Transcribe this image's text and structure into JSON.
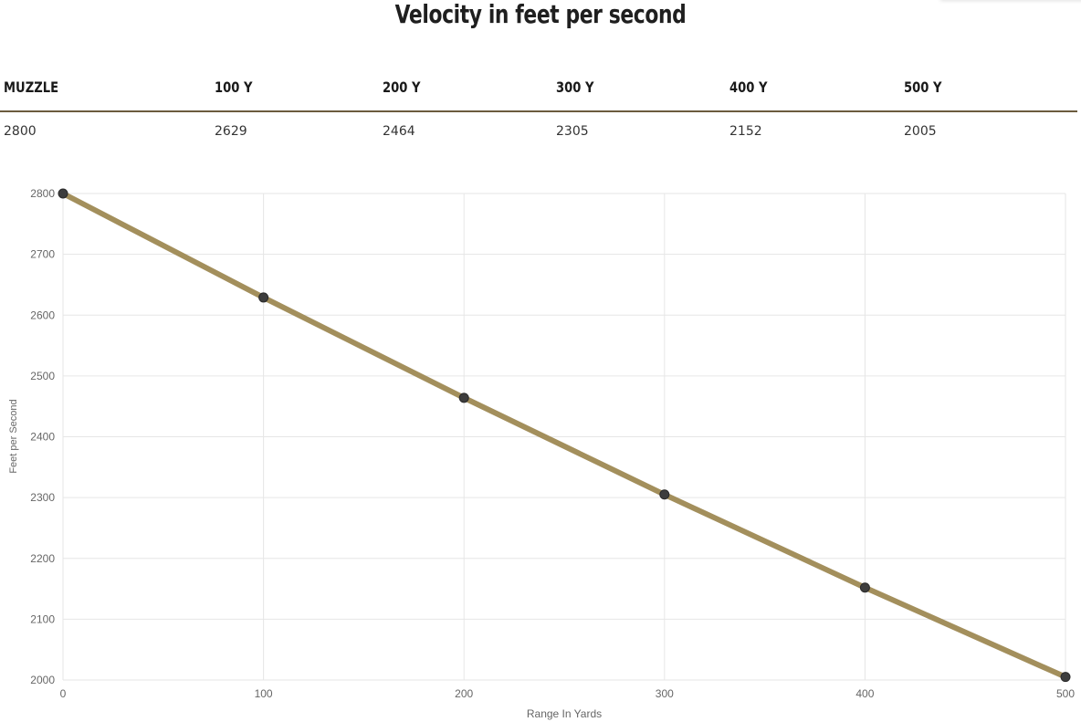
{
  "page": {
    "title": "Velocity in feet per second"
  },
  "table": {
    "headers": [
      "MUZZLE",
      "100 Y",
      "200 Y",
      "300 Y",
      "400 Y",
      "500 Y"
    ],
    "values": [
      "2800",
      "2629",
      "2464",
      "2305",
      "2152",
      "2005"
    ]
  },
  "colors": {
    "line": "#a38f5c",
    "point": "#3d3d3d",
    "rule": "#6b5b3e",
    "grid": "#e6e6e6"
  },
  "chart_data": {
    "type": "line",
    "title": "",
    "xlabel": "Range In Yards",
    "ylabel": "Feet per Second",
    "x": [
      0,
      100,
      200,
      300,
      400,
      500
    ],
    "series": [
      {
        "name": "",
        "values": [
          2800,
          2629,
          2464,
          2305,
          2152,
          2005
        ]
      }
    ],
    "xlim": [
      0,
      500
    ],
    "ylim": [
      2000,
      2800
    ],
    "xticks": [
      "0",
      "100",
      "200",
      "300",
      "400",
      "500"
    ],
    "yticks": [
      "2000",
      "2100",
      "2200",
      "2300",
      "2400",
      "2500",
      "2600",
      "2700",
      "2800"
    ],
    "grid": true,
    "legend": "none"
  }
}
